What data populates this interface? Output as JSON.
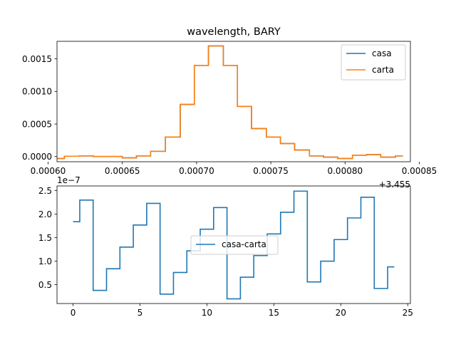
{
  "chart_data": [
    {
      "type": "line",
      "drawstyle": "steps-mid",
      "title": "wavelength, BARY",
      "xlabel": "",
      "ylabel": "",
      "xlim": [
        0.000606,
        0.000844
      ],
      "ylim": [
        -8e-05,
        0.00177
      ],
      "x_offset_text": "+3.455",
      "xticks": [
        0.0006,
        0.00065,
        0.0007,
        0.00075,
        0.0008,
        0.00085
      ],
      "xtick_labels": [
        "0.00060",
        "0.00065",
        "0.00070",
        "0.00075",
        "0.00080",
        "0.00085"
      ],
      "yticks": [
        0.0,
        0.0005,
        0.001,
        0.0015
      ],
      "ytick_labels": [
        "0.0000",
        "0.0005",
        "0.0010",
        "0.0015"
      ],
      "legend_position": "upper right",
      "grid": false,
      "x": [
        0.000606,
        0.000616,
        0.000626,
        0.000635,
        0.000645,
        0.000655,
        0.000664,
        0.000674,
        0.000684,
        0.000694,
        0.000703,
        0.000713,
        0.000723,
        0.000732,
        0.000742,
        0.000752,
        0.000761,
        0.000771,
        0.000781,
        0.00079,
        0.0008,
        0.00081,
        0.000819,
        0.000829,
        0.000839
      ],
      "series": [
        {
          "name": "casa",
          "color": "#1f77b4",
          "values": [
            -3e-05,
            5e-06,
            1e-05,
            0.0,
            0.0,
            -2e-05,
            1e-05,
            8e-05,
            0.0003,
            0.0008,
            0.0014,
            0.0017,
            0.0014,
            0.00077,
            0.00043,
            0.0003,
            0.0002,
            0.0001,
            1e-05,
            -1e-05,
            -3e-05,
            2e-05,
            3e-05,
            -1e-05,
            1e-05
          ]
        },
        {
          "name": "carta",
          "color": "#ff7f0e",
          "values": [
            -3e-05,
            5e-06,
            1e-05,
            0.0,
            0.0,
            -2e-05,
            1e-05,
            8e-05,
            0.0003,
            0.0008,
            0.0014,
            0.0017,
            0.0014,
            0.00077,
            0.00043,
            0.0003,
            0.0002,
            0.0001,
            1e-05,
            -1e-05,
            -3e-05,
            2e-05,
            3e-05,
            -1e-05,
            1e-05
          ]
        }
      ]
    },
    {
      "type": "line",
      "drawstyle": "steps-mid",
      "title": "",
      "xlabel": "",
      "ylabel": "",
      "xlim": [
        -1.2,
        25.2
      ],
      "ylim": [
        0.1,
        2.6
      ],
      "y_offset_text": "1e−7",
      "xticks": [
        0,
        5,
        10,
        15,
        20,
        25
      ],
      "xtick_labels": [
        "0",
        "5",
        "10",
        "15",
        "20",
        "25"
      ],
      "yticks": [
        0.5,
        1.0,
        1.5,
        2.0,
        2.5
      ],
      "ytick_labels": [
        "0.5",
        "1.0",
        "1.5",
        "2.0",
        "2.5"
      ],
      "legend_position": "center",
      "grid": false,
      "x": [
        0,
        1,
        2,
        3,
        4,
        5,
        6,
        7,
        8,
        9,
        10,
        11,
        12,
        13,
        14,
        15,
        16,
        17,
        18,
        19,
        20,
        21,
        22,
        23,
        24
      ],
      "series": [
        {
          "name": "casa-carta",
          "color": "#1f77b4",
          "values": [
            1.84,
            2.3,
            0.38,
            0.84,
            1.3,
            1.77,
            2.23,
            0.3,
            0.76,
            1.22,
            1.68,
            2.14,
            0.2,
            0.66,
            1.12,
            1.58,
            2.04,
            2.49,
            0.56,
            1.0,
            1.46,
            1.92,
            2.36,
            0.42,
            0.88
          ]
        }
      ]
    }
  ]
}
